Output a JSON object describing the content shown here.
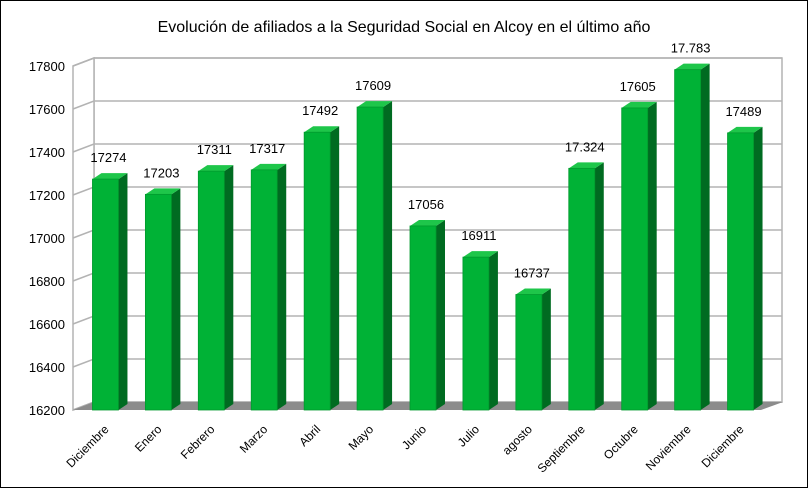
{
  "chart_data": {
    "type": "bar",
    "title": "Evolución de afiliados a la Seguridad Social en Alcoy en el último año",
    "categories": [
      "Diciembre",
      "Enero",
      "Febrero",
      "Marzo",
      "Abril",
      "Mayo",
      "Junio",
      "Julio",
      "agosto",
      "Septiembre",
      "Octubre",
      "Noviembre",
      "Diciembre"
    ],
    "values": [
      17274,
      17203,
      17311,
      17317,
      17492,
      17609,
      17056,
      16911,
      16737,
      17324,
      17605,
      17783,
      17489
    ],
    "data_labels": [
      "17274",
      "17203",
      "17311",
      "17317",
      "17492",
      "17609",
      "17056",
      "16911",
      "16737",
      "17.324",
      "17605",
      "17.783",
      "17489"
    ],
    "ylim": [
      16200,
      17800
    ],
    "yticks": [
      "16200",
      "16400",
      "16600",
      "16800",
      "17000",
      "17200",
      "17400",
      "17600",
      "17800"
    ],
    "xlabel": "",
    "ylabel": "",
    "grid": true,
    "legend": "none",
    "style": "3d-bar",
    "colors": {
      "bar_front": "#00b236",
      "bar_side": "#006b21",
      "bar_top": "#1ec64a",
      "floor": "#8c8c8c",
      "grid": "#b3b3b3"
    }
  }
}
